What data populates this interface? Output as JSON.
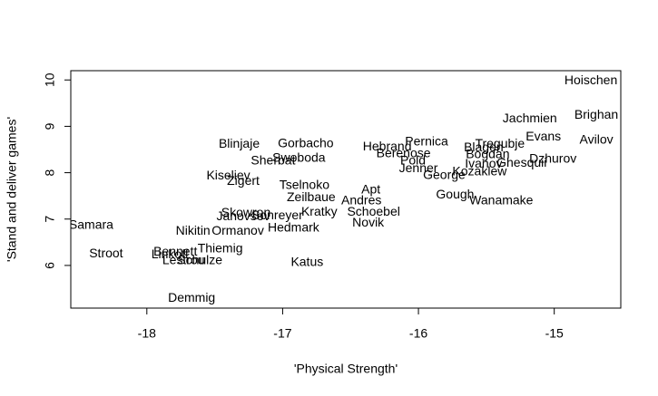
{
  "chart_data": {
    "type": "scatter",
    "xlabel": "'Physical Strength'",
    "ylabel": "'Stand and deliver games'",
    "xlim": [
      -18.56,
      -14.51
    ],
    "ylim": [
      5.08,
      10.2
    ],
    "xticks": [
      -18,
      -17,
      -16,
      -15
    ],
    "yticks": [
      6,
      7,
      8,
      9,
      10
    ],
    "color": "#000000",
    "labels": [
      "Hoischen",
      "Brighan",
      "Jachmien",
      "Evans",
      "Avilov",
      "Pernica",
      "Hebrand",
      "Berenose",
      "Pold",
      "Jenner",
      "George",
      "Kozaklew",
      "Ivanov",
      "Bogdan",
      "Blagen",
      "Tregubje",
      "Ghesquii",
      "Dzhurov",
      "Gough",
      "Wanamake",
      "Apt",
      "Andres",
      "Schoebel",
      "Novik",
      "Gorbacho",
      "Swoboda",
      "Sherbat",
      "Blinjaje",
      "Kiseliev",
      "Zigert",
      "Tselnoko",
      "Zeilbaue",
      "Kratky",
      "Hedmark",
      "Skowron",
      "Janovsov",
      "Sonreyer",
      "Nikitin",
      "Ormanov",
      "Samara",
      "Stroot",
      "Bennett",
      "Thiemig",
      "Linkoff",
      "Lestrou",
      "Schulze",
      "Katus",
      "Demmig"
    ],
    "x": [
      -14.73,
      -14.69,
      -15.18,
      -15.08,
      -14.69,
      -15.94,
      -16.23,
      -16.11,
      -16.04,
      -16.0,
      -15.81,
      -15.55,
      -15.52,
      -15.49,
      -15.52,
      -15.4,
      -15.24,
      -15.01,
      -15.73,
      -15.39,
      -16.35,
      -16.42,
      -16.33,
      -16.37,
      -16.83,
      -16.88,
      -17.07,
      -17.32,
      -17.4,
      -17.29,
      -16.84,
      -16.79,
      -16.73,
      -16.92,
      -17.27,
      -17.29,
      -17.04,
      -17.66,
      -17.33,
      -18.41,
      -18.3,
      -17.79,
      -17.46,
      -17.83,
      -17.73,
      -17.61,
      -16.82,
      -17.67
    ],
    "y": [
      9.98,
      9.24,
      9.16,
      8.77,
      8.7,
      8.66,
      8.55,
      8.41,
      8.25,
      8.08,
      7.94,
      8.02,
      8.18,
      8.39,
      8.53,
      8.61,
      8.2,
      8.29,
      7.52,
      7.39,
      7.62,
      7.39,
      7.15,
      6.91,
      8.62,
      8.31,
      8.25,
      8.61,
      7.93,
      7.81,
      7.72,
      7.46,
      7.15,
      6.8,
      7.13,
      7.05,
      7.07,
      6.74,
      6.74,
      6.86,
      6.25,
      6.29,
      6.35,
      6.23,
      6.1,
      6.1,
      6.06,
      5.29
    ]
  }
}
